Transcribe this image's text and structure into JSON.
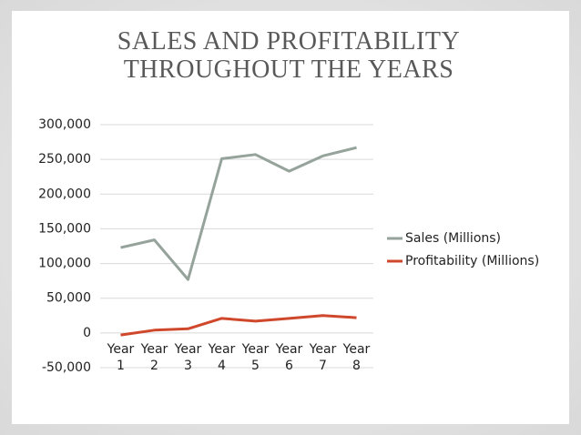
{
  "chart_data": {
    "type": "line",
    "title": "SALES AND PROFITABILITY THROUGHOUT THE YEARS",
    "categories": [
      "Year 1",
      "Year 2",
      "Year 3",
      "Year 4",
      "Year 5",
      "Year 6",
      "Year 7",
      "Year 8"
    ],
    "series": [
      {
        "name": "Sales (Millions)",
        "color": "#95a39b",
        "values": [
          123000,
          134000,
          77000,
          251000,
          257000,
          233000,
          255000,
          267000
        ]
      },
      {
        "name": "Profitability (Millions)",
        "color": "#d0482c",
        "values": [
          -3000,
          4000,
          6000,
          21000,
          17000,
          21000,
          25000,
          22000
        ]
      }
    ],
    "ylim": [
      -50000,
      300000
    ],
    "yticks": [
      {
        "value": -50000,
        "label": "-50,000"
      },
      0,
      {
        "value": 50000,
        "label": "50,000"
      },
      {
        "value": 100000,
        "label": "100,000"
      },
      {
        "value": 150000,
        "label": "150,000"
      },
      {
        "value": 200000,
        "label": "200,000"
      },
      {
        "value": 250000,
        "label": "250,000"
      },
      {
        "value": 300000,
        "label": "300,000"
      }
    ],
    "grid": true,
    "legend": "right"
  }
}
